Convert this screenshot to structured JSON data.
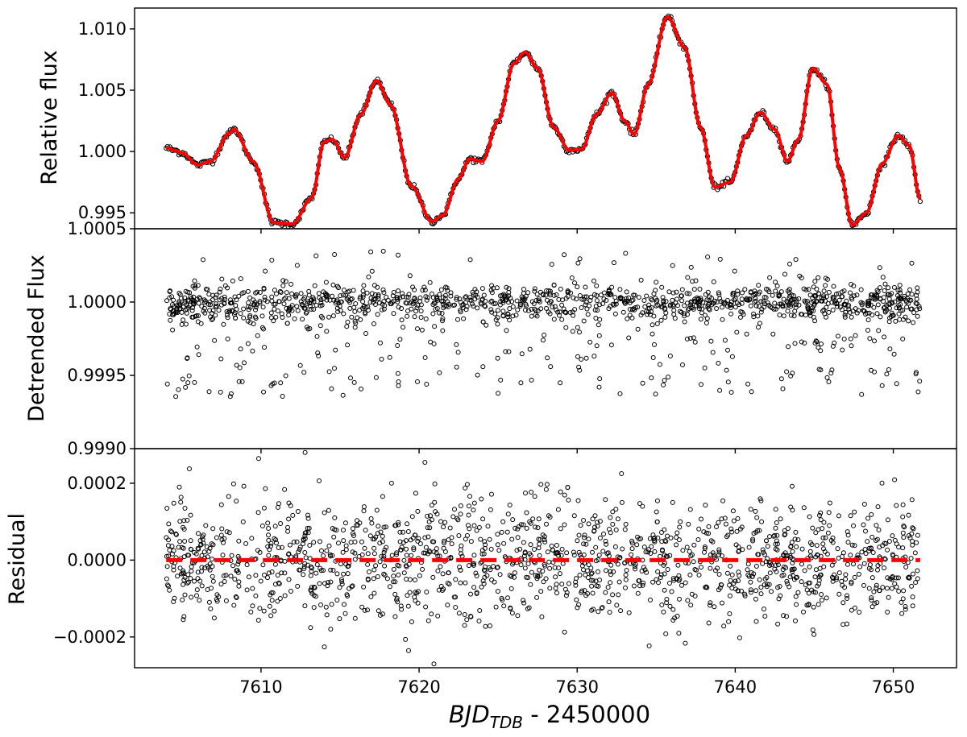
{
  "chart_data": {
    "type": "scatter",
    "figure": {
      "xlabel_prefix": "BJD",
      "xlabel_subscript": "TDB",
      "xlabel_suffix": " - 2450000",
      "xlim": [
        7602,
        7654
      ],
      "xticks": [
        7610,
        7620,
        7630,
        7640,
        7650
      ],
      "xtick_labels": [
        "7610",
        "7620",
        "7630",
        "7640",
        "7650"
      ],
      "x_range_data": [
        7604.0,
        7651.7
      ]
    },
    "panels": [
      {
        "id": "relative-flux",
        "ylabel": "Relative flux",
        "ylim": [
          0.9937,
          1.0117
        ],
        "yticks": [
          0.995,
          1.0,
          1.005,
          1.01
        ],
        "ytick_labels": [
          "0.995",
          "1.000",
          "1.005",
          "1.010"
        ],
        "series": [
          {
            "name": "data",
            "color": "#000000",
            "marker": "open-circle"
          },
          {
            "name": "model",
            "color": "#ff0000",
            "style": "solid-line"
          }
        ],
        "curve": {
          "x": [
            7604.0,
            7604.5,
            7605.0,
            7606.0,
            7606.8,
            7608.0,
            7608.3,
            7609.5,
            7610.8,
            7612.0,
            7613.2,
            7614.0,
            7614.5,
            7615.3,
            7616.3,
            7617.3,
            7618.2,
            7619.5,
            7620.8,
            7621.5,
            7622.5,
            7623.2,
            7624.0,
            7625.0,
            7626.0,
            7626.7,
            7627.5,
            7628.5,
            7629.5,
            7630.3,
            7631.2,
            7632.2,
            7633.0,
            7633.6,
            7634.5,
            7635.7,
            7636.8,
            7637.8,
            7638.7,
            7639.7,
            7640.7,
            7641.6,
            7642.5,
            7643.3,
            7644.0,
            7644.9,
            7645.8,
            7646.6,
            7647.4,
            7648.3,
            7649.3,
            7650.3,
            7651.0,
            7651.7
          ],
          "y": [
            1.0003,
            1.0001,
            0.9999,
            0.9989,
            0.9992,
            1.0015,
            1.0018,
            0.9992,
            0.9942,
            0.9941,
            0.9962,
            1.0008,
            1.001,
            0.9995,
            1.003,
            1.0058,
            1.0038,
            0.9972,
            0.9943,
            0.9948,
            0.9978,
            0.9994,
            0.9992,
            1.0025,
            1.0072,
            1.0081,
            1.0068,
            1.002,
            1.0001,
            1.0002,
            1.003,
            1.0048,
            1.0025,
            1.0014,
            1.0055,
            1.011,
            1.0085,
            1.002,
            0.9971,
            0.9975,
            1.0013,
            1.0032,
            1.0018,
            0.9992,
            1.001,
            1.0068,
            1.0055,
            0.9986,
            0.994,
            0.995,
            0.999,
            1.0013,
            1.0005,
            0.9961
          ]
        }
      },
      {
        "id": "detrended-flux",
        "ylabel": "Detrended Flux",
        "ylim": [
          0.999,
          1.0005
        ],
        "yticks": [
          0.999,
          0.9995,
          1.0,
          1.0005
        ],
        "ytick_labels": [
          "0.9990",
          "0.9995",
          "1.0000",
          "1.0005"
        ],
        "series": [
          {
            "name": "detrended data",
            "color": "#000000",
            "marker": "open-circle",
            "center": 1.0,
            "scatter": 6e-05,
            "outlier_low": 0.99935,
            "outlier_high": 1.00035
          }
        ]
      },
      {
        "id": "residual",
        "ylabel": "Residual",
        "ylim": [
          -0.00028,
          0.00029
        ],
        "yticks": [
          -0.0002,
          0.0,
          0.0002
        ],
        "ytick_labels": [
          "−0.0002",
          "0.0000",
          "0.0002"
        ],
        "series": [
          {
            "name": "residuals",
            "color": "#000000",
            "marker": "open-circle",
            "center": 0.0,
            "scatter": 8e-05
          },
          {
            "name": "zero line",
            "color": "#ff0000",
            "style": "dashed-line",
            "y": 0.0
          }
        ]
      }
    ]
  }
}
